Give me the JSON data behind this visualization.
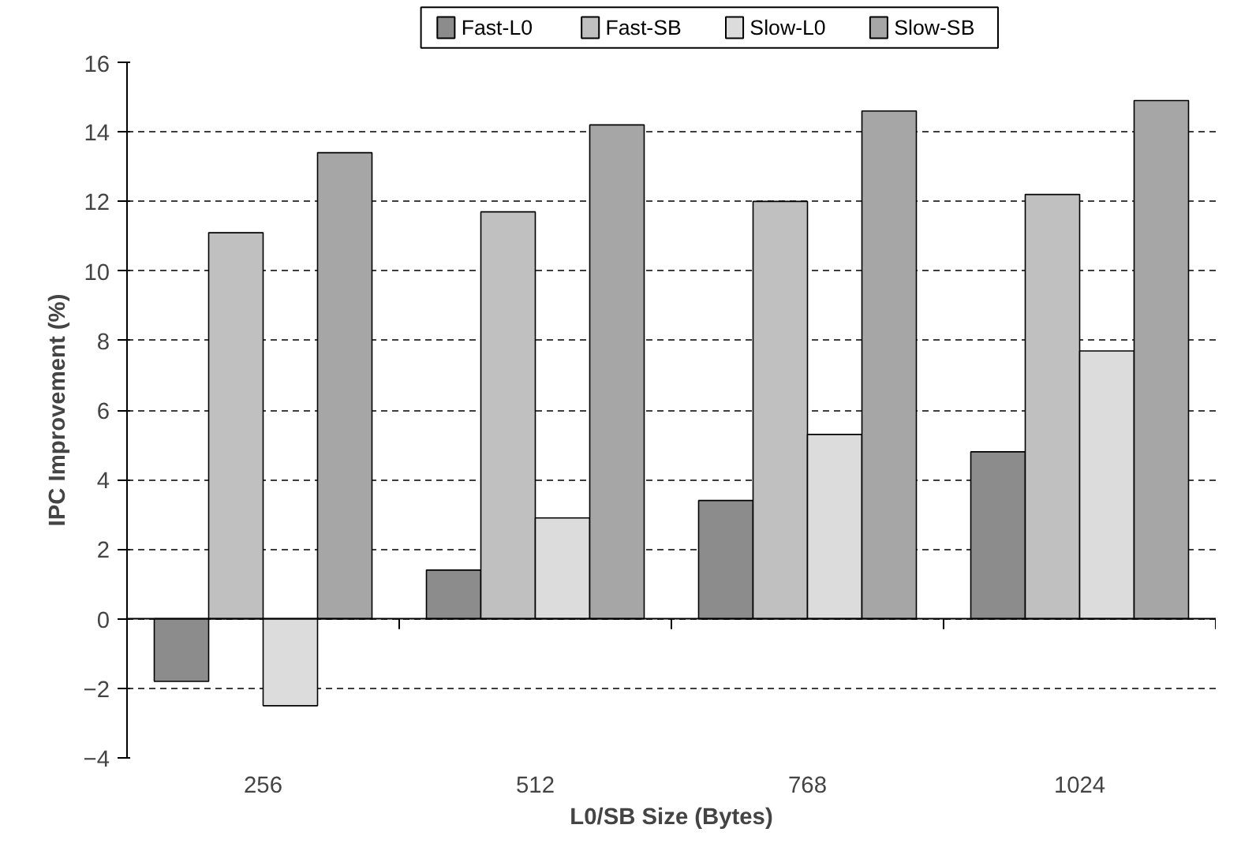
{
  "chart_data": {
    "type": "bar",
    "xlabel": "L0/SB Size (Bytes)",
    "ylabel": "IPC Improvement (%)",
    "categories": [
      "256",
      "512",
      "768",
      "1024"
    ],
    "series": [
      {
        "name": "Fast-L0",
        "color": "#8c8c8c",
        "values": [
          -1.8,
          1.4,
          3.4,
          4.8
        ]
      },
      {
        "name": "Fast-SB",
        "color": "#c0c0c0",
        "values": [
          11.1,
          11.7,
          12.0,
          12.2
        ]
      },
      {
        "name": "Slow-L0",
        "color": "#dcdcdc",
        "values": [
          -2.5,
          2.9,
          5.3,
          7.7
        ]
      },
      {
        "name": "Slow-SB",
        "color": "#a6a6a6",
        "values": [
          13.4,
          14.2,
          14.6,
          14.9
        ]
      }
    ],
    "ylim": [
      -4,
      16
    ],
    "yticks": [
      -4,
      -2,
      0,
      2,
      4,
      6,
      8,
      10,
      12,
      14,
      16
    ],
    "grid": "y",
    "legend": "top"
  }
}
